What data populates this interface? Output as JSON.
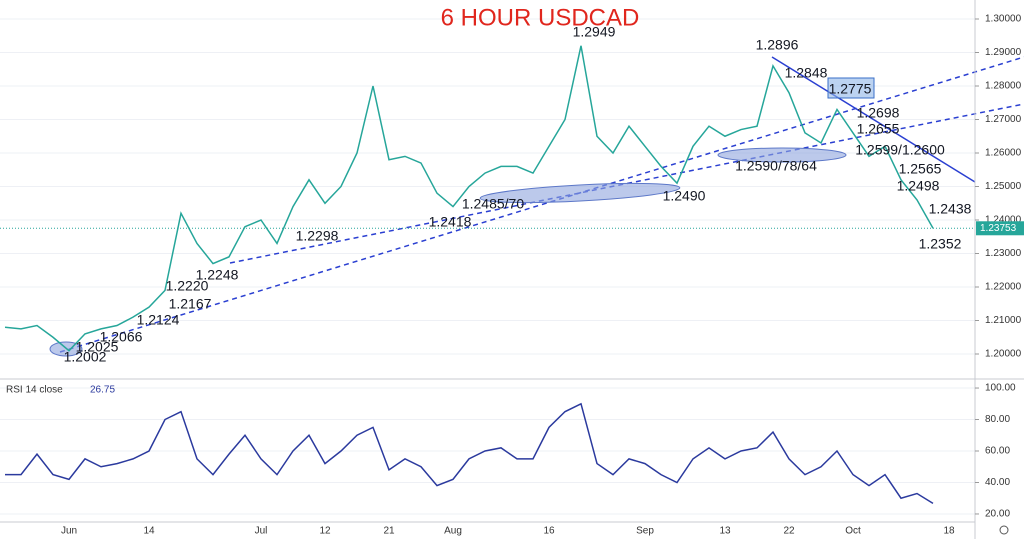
{
  "chart_data": [
    {
      "type": "line",
      "title": "6 HOUR USDCAD",
      "title_color": "#e0261d",
      "categories": [
        null,
        null,
        null,
        null,
        "Jun",
        null,
        null,
        null,
        null,
        "14",
        null,
        null,
        null,
        null,
        null,
        null,
        "Jul",
        null,
        null,
        null,
        "12",
        null,
        null,
        null,
        "21",
        null,
        null,
        null,
        "Aug",
        null,
        null,
        null,
        null,
        null,
        "16",
        null,
        null,
        null,
        null,
        null,
        "Sep",
        null,
        null,
        null,
        null,
        "13",
        null,
        null,
        null,
        "22",
        null,
        null,
        null,
        "Oct",
        null,
        null,
        null,
        null,
        null,
        "18"
      ],
      "series": [
        {
          "name": "USDCAD",
          "color": "#26a69a",
          "values": [
            1.208,
            1.2075,
            1.2085,
            1.205,
            1.201,
            1.206,
            1.2075,
            1.2085,
            1.211,
            1.214,
            1.219,
            1.242,
            1.233,
            1.227,
            1.229,
            1.238,
            1.24,
            1.233,
            1.244,
            1.252,
            1.245,
            1.25,
            1.26,
            1.28,
            1.258,
            1.259,
            1.257,
            1.248,
            1.244,
            1.25,
            1.254,
            1.256,
            1.256,
            1.254,
            1.262,
            1.27,
            1.292,
            1.265,
            1.26,
            1.268,
            1.262,
            1.256,
            1.251,
            1.262,
            1.268,
            1.265,
            1.267,
            1.268,
            1.286,
            1.278,
            1.266,
            1.263,
            1.273,
            1.266,
            1.259,
            1.262,
            1.252,
            1.246,
            1.23753,
            null
          ]
        }
      ],
      "ylim": [
        1.19284,
        1.30567
      ],
      "yticks": [
        {
          "value": 1.2,
          "label": "1.20000"
        },
        {
          "value": 1.21,
          "label": "1.21000"
        },
        {
          "value": 1.22,
          "label": "1.22000"
        },
        {
          "value": 1.23,
          "label": "1.23000"
        },
        {
          "value": 1.24,
          "label": "1.24000"
        },
        {
          "value": 1.25,
          "label": "1.25000"
        },
        {
          "value": 1.26,
          "label": "1.26000"
        },
        {
          "value": 1.27,
          "label": "1.27000"
        },
        {
          "value": 1.28,
          "label": "1.28000"
        },
        {
          "value": 1.29,
          "label": "1.29000"
        },
        {
          "value": 1.3,
          "label": "1.30000"
        }
      ],
      "grid": true,
      "annotations": [
        "1.2949",
        "1.2896",
        "1.2848",
        "1.2775",
        "1.2698",
        "1.2655",
        "1.2599/1.2600",
        "1.2590/78/64",
        "1.2565",
        "1.2498",
        "1.2490",
        "1.2438",
        "1.2352",
        "1.2485/70",
        "1.2418",
        "1.2298",
        "1.2248",
        "1.2220",
        "1.2167",
        "1.2124",
        "1.2066",
        "1.2025",
        "1.2002"
      ]
    },
    {
      "type": "line",
      "series": [
        {
          "name": "RSI 14 close",
          "color": "#2b3a9e",
          "values": [
            45,
            45,
            58,
            45,
            42,
            55,
            50,
            52,
            55,
            60,
            80,
            85,
            55,
            45,
            58,
            70,
            55,
            45,
            60,
            70,
            52,
            60,
            70,
            75,
            48,
            55,
            50,
            38,
            42,
            55,
            60,
            62,
            55,
            55,
            75,
            85,
            90,
            52,
            45,
            55,
            52,
            45,
            40,
            55,
            62,
            55,
            60,
            62,
            72,
            55,
            45,
            50,
            60,
            45,
            38,
            45,
            30,
            33,
            26.75,
            null
          ]
        }
      ],
      "ylim": [
        14.9,
        105.1
      ],
      "yticks": [
        {
          "value": 20,
          "label": "20.00"
        },
        {
          "value": 40,
          "label": "40.00"
        },
        {
          "value": 60,
          "label": "60.00"
        },
        {
          "value": 80,
          "label": "80.00"
        },
        {
          "value": 100,
          "label": "100.00"
        }
      ],
      "grid": true
    }
  ]
}
